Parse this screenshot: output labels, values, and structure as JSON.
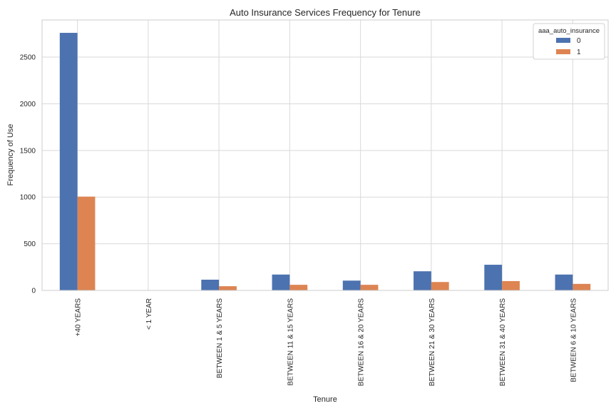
{
  "chart_data": {
    "type": "bar",
    "title": "Auto Insurance Services Frequency for Tenure",
    "xlabel": "Tenure",
    "ylabel": "Frequency of Use",
    "categories": [
      "+40 YEARS",
      "< 1 YEAR",
      "BETWEEN 1 & 5 YEARS",
      "BETWEEN 11 & 15 YEARS",
      "BETWEEN 16 & 20 YEARS",
      "BETWEEN 21 & 30 YEARS",
      "BETWEEN 31 & 40 YEARS",
      "BETWEEN 6 & 10 YEARS"
    ],
    "series": [
      {
        "name": "0",
        "color": "#4c72b0",
        "values": [
          2760,
          1,
          115,
          170,
          105,
          205,
          275,
          170
        ]
      },
      {
        "name": "1",
        "color": "#dd8452",
        "values": [
          1005,
          0,
          45,
          60,
          60,
          90,
          100,
          70
        ]
      }
    ],
    "ylim": [
      0,
      2898
    ],
    "yticks": [
      0,
      500,
      1000,
      1500,
      2000,
      2500
    ],
    "grid": true,
    "legend": {
      "title": "aaa_auto_insurance",
      "placement": "top-right"
    }
  }
}
